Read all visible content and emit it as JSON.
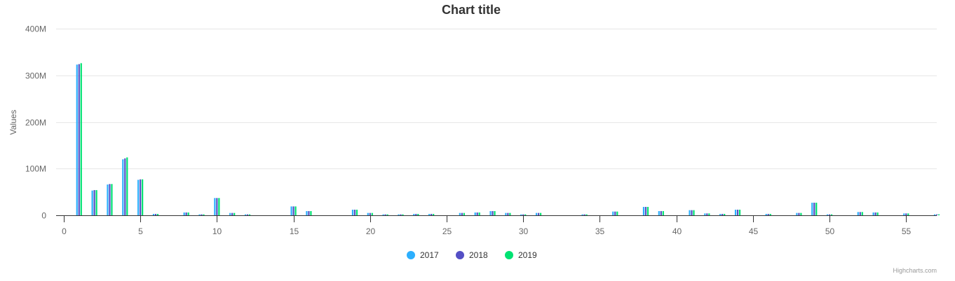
{
  "chart_data": {
    "type": "bar",
    "title": "Chart title",
    "xlabel": "",
    "ylabel": "Values",
    "xlim": [
      -0.5,
      57
    ],
    "ylim": [
      0,
      400000000
    ],
    "x_ticks": [
      0,
      5,
      10,
      15,
      20,
      25,
      30,
      35,
      40,
      45,
      50,
      55
    ],
    "x_tick_labels": [
      "0",
      "5",
      "10",
      "15",
      "20",
      "25",
      "30",
      "35",
      "40",
      "45",
      "50",
      "55"
    ],
    "y_ticks": [
      0,
      100000000,
      200000000,
      300000000,
      400000000
    ],
    "y_tick_labels": [
      "0",
      "100M",
      "200M",
      "300M",
      "400M"
    ],
    "grid": true,
    "legend_position": "bottom-center",
    "categories": [
      1,
      2,
      3,
      4,
      5,
      6,
      8,
      9,
      10,
      11,
      12,
      15,
      16,
      19,
      20,
      21,
      22,
      23,
      24,
      26,
      27,
      28,
      29,
      30,
      31,
      34,
      36,
      38,
      39,
      41,
      42,
      43,
      44,
      46,
      48,
      49,
      50,
      52,
      53,
      55,
      57
    ],
    "series": [
      {
        "name": "2017",
        "color": "#2caffe",
        "values": [
          323000000,
          53000000,
          66000000,
          120000000,
          76000000,
          3000000,
          6000000,
          2000000,
          37000000,
          5000000,
          2000000,
          19000000,
          9000000,
          12000000,
          5000000,
          2000000,
          2000000,
          3000000,
          3000000,
          5000000,
          6000000,
          9000000,
          5000000,
          2000000,
          5000000,
          2000000,
          8000000,
          18000000,
          9000000,
          11000000,
          4000000,
          3000000,
          12000000,
          3000000,
          5000000,
          27000000,
          2000000,
          7000000,
          6000000,
          4000000,
          2000000
        ]
      },
      {
        "name": "2018",
        "color": "#544fc5",
        "values": [
          324000000,
          54000000,
          67000000,
          122000000,
          77000000,
          3000000,
          6000000,
          2000000,
          37000000,
          5000000,
          2000000,
          19000000,
          9000000,
          12000000,
          5000000,
          2000000,
          2000000,
          3000000,
          3000000,
          5000000,
          6000000,
          9000000,
          5000000,
          2000000,
          5000000,
          2000000,
          8000000,
          18000000,
          9000000,
          11000000,
          4000000,
          3000000,
          12000000,
          3000000,
          5000000,
          27000000,
          2000000,
          7000000,
          6000000,
          4000000,
          2000000
        ]
      },
      {
        "name": "2019",
        "color": "#00e272",
        "values": [
          326000000,
          54000000,
          67000000,
          124000000,
          77000000,
          3000000,
          6000000,
          2000000,
          37000000,
          5000000,
          2000000,
          19000000,
          9000000,
          12000000,
          5000000,
          2000000,
          2000000,
          3000000,
          3000000,
          5000000,
          6000000,
          9000000,
          5000000,
          2000000,
          5000000,
          2000000,
          8000000,
          18000000,
          9000000,
          11000000,
          4000000,
          3000000,
          12000000,
          3000000,
          5000000,
          27000000,
          2000000,
          7000000,
          6000000,
          4000000,
          2000000
        ]
      }
    ]
  },
  "credits": "Highcharts.com"
}
